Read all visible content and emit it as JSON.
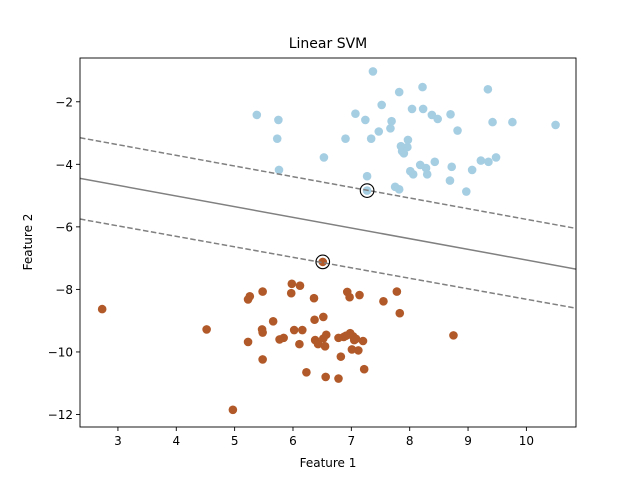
{
  "chart_data": {
    "type": "scatter",
    "title": "Linear SVM",
    "xlabel": "Feature 1",
    "ylabel": "Feature 2",
    "xlim": [
      2.35,
      10.85
    ],
    "ylim": [
      -12.4,
      -0.6
    ],
    "xticks": [
      3,
      4,
      5,
      6,
      7,
      8,
      9,
      10
    ],
    "yticks": [
      -12,
      -10,
      -8,
      -6,
      -4,
      -2
    ],
    "grid": false,
    "colors": {
      "class_0": "#a6cee3",
      "class_1": "#b15928",
      "boundary": "#808080",
      "support_vector_edge": "#000000"
    },
    "decision_function": {
      "line": {
        "x": [
          2.35,
          10.85
        ],
        "y": [
          -4.45,
          -7.35
        ]
      },
      "margins": [
        {
          "x": [
            2.35,
            10.85
          ],
          "y": [
            -3.15,
            -6.05
          ],
          "style": "dashed"
        },
        {
          "x": [
            2.35,
            10.85
          ],
          "y": [
            -5.75,
            -8.6
          ],
          "style": "dashed"
        }
      ]
    },
    "support_vectors": [
      {
        "x": 7.27,
        "y": -4.84
      },
      {
        "x": 6.51,
        "y": -7.12
      }
    ],
    "series": [
      {
        "color": "#a6cee3",
        "points": [
          [
            7.37,
            -1.03
          ],
          [
            8.22,
            -1.53
          ],
          [
            9.34,
            -1.6
          ],
          [
            7.82,
            -1.69
          ],
          [
            7.52,
            -2.1
          ],
          [
            5.38,
            -2.42
          ],
          [
            7.07,
            -2.38
          ],
          [
            8.04,
            -2.23
          ],
          [
            8.23,
            -2.23
          ],
          [
            8.38,
            -2.42
          ],
          [
            8.48,
            -2.55
          ],
          [
            8.7,
            -2.4
          ],
          [
            7.24,
            -2.58
          ],
          [
            7.69,
            -2.62
          ],
          [
            5.75,
            -2.58
          ],
          [
            9.42,
            -2.65
          ],
          [
            9.76,
            -2.65
          ],
          [
            10.5,
            -2.74
          ],
          [
            7.47,
            -2.95
          ],
          [
            7.67,
            -2.85
          ],
          [
            7.34,
            -3.18
          ],
          [
            8.82,
            -2.92
          ],
          [
            6.9,
            -3.18
          ],
          [
            5.73,
            -3.18
          ],
          [
            7.97,
            -3.22
          ],
          [
            7.85,
            -3.42
          ],
          [
            7.96,
            -3.45
          ],
          [
            7.87,
            -3.58
          ],
          [
            7.9,
            -3.65
          ],
          [
            6.53,
            -3.78
          ],
          [
            8.43,
            -3.92
          ],
          [
            9.22,
            -3.88
          ],
          [
            9.35,
            -3.92
          ],
          [
            9.48,
            -3.78
          ],
          [
            8.18,
            -4.02
          ],
          [
            8.28,
            -4.12
          ],
          [
            8.72,
            -4.08
          ],
          [
            9.07,
            -4.18
          ],
          [
            8.01,
            -4.22
          ],
          [
            8.06,
            -4.32
          ],
          [
            8.3,
            -4.32
          ],
          [
            5.76,
            -4.18
          ],
          [
            7.27,
            -4.38
          ],
          [
            8.69,
            -4.52
          ],
          [
            7.75,
            -4.72
          ],
          [
            7.82,
            -4.8
          ],
          [
            8.97,
            -4.87
          ],
          [
            7.27,
            -4.84
          ]
        ]
      },
      {
        "color": "#b15928",
        "points": [
          [
            6.51,
            -7.12
          ],
          [
            5.98,
            -7.82
          ],
          [
            6.12,
            -7.88
          ],
          [
            7.78,
            -8.07
          ],
          [
            5.48,
            -8.07
          ],
          [
            5.97,
            -8.12
          ],
          [
            6.93,
            -8.08
          ],
          [
            7.14,
            -8.18
          ],
          [
            5.26,
            -8.22
          ],
          [
            6.97,
            -8.25
          ],
          [
            5.23,
            -8.32
          ],
          [
            7.55,
            -8.38
          ],
          [
            6.36,
            -8.28
          ],
          [
            2.73,
            -8.63
          ],
          [
            7.83,
            -8.76
          ],
          [
            6.52,
            -8.88
          ],
          [
            5.66,
            -9.02
          ],
          [
            6.37,
            -8.97
          ],
          [
            4.52,
            -9.28
          ],
          [
            5.47,
            -9.28
          ],
          [
            6.02,
            -9.3
          ],
          [
            6.16,
            -9.3
          ],
          [
            6.57,
            -9.45
          ],
          [
            5.48,
            -9.38
          ],
          [
            6.98,
            -9.4
          ],
          [
            6.52,
            -9.57
          ],
          [
            6.78,
            -9.55
          ],
          [
            6.87,
            -9.52
          ],
          [
            6.91,
            -9.48
          ],
          [
            7.03,
            -9.5
          ],
          [
            8.75,
            -9.47
          ],
          [
            5.84,
            -9.55
          ],
          [
            5.77,
            -9.6
          ],
          [
            7.05,
            -9.62
          ],
          [
            7.08,
            -9.58
          ],
          [
            7.2,
            -9.65
          ],
          [
            5.23,
            -9.68
          ],
          [
            6.38,
            -9.62
          ],
          [
            6.43,
            -9.75
          ],
          [
            6.11,
            -9.75
          ],
          [
            6.55,
            -9.82
          ],
          [
            7.01,
            -9.92
          ],
          [
            7.12,
            -9.95
          ],
          [
            5.48,
            -10.24
          ],
          [
            6.82,
            -10.15
          ],
          [
            7.22,
            -10.55
          ],
          [
            6.23,
            -10.65
          ],
          [
            6.56,
            -10.8
          ],
          [
            6.78,
            -10.85
          ],
          [
            4.97,
            -11.85
          ]
        ]
      }
    ]
  }
}
